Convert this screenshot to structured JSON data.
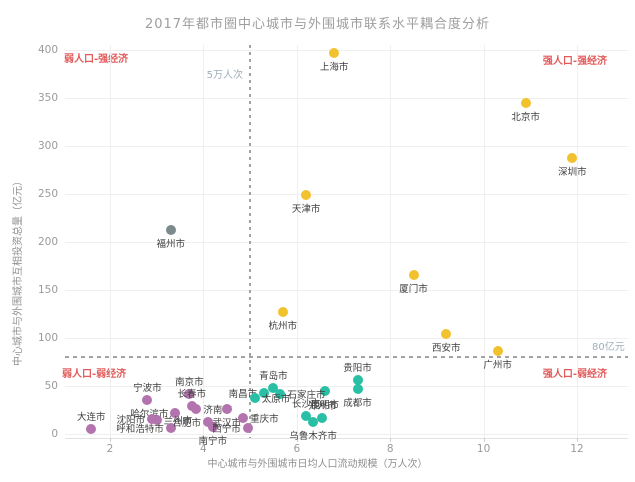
{
  "chart_data": {
    "type": "scatter",
    "title": "2017年都市圈中心城市与外围城市联系水平耦合度分析",
    "xlabel": "中心城市与外围城市日均人口流动规模（万人次）",
    "ylabel": "中心城市与外围城市互相投资总量（亿元）",
    "x_ticks": [
      2,
      4,
      6,
      8,
      10,
      12
    ],
    "y_ticks": [
      0,
      50,
      100,
      150,
      200,
      250,
      300,
      350,
      400
    ],
    "xlim": [
      1.0,
      13.1
    ],
    "ylim": [
      0,
      410
    ],
    "grid": true,
    "legend": "none",
    "quadrants": {
      "top_left": "弱人口-强经济",
      "top_right": "强人口-强经济",
      "bottom_left": "弱人口-弱经济",
      "bottom_right": "强人口-弱经济"
    },
    "reference_lines": {
      "vertical": {
        "value": 5,
        "label": "5万人次"
      },
      "horizontal": {
        "value": 80,
        "label": "80亿元"
      }
    },
    "series": [
      {
        "name": "yellow-group",
        "color": "#F2C12E",
        "points": [
          {
            "city": "上海市",
            "x": 6.8,
            "y": 397,
            "label_pos": "below"
          },
          {
            "city": "北京市",
            "x": 10.9,
            "y": 345,
            "label_pos": "below"
          },
          {
            "city": "深圳市",
            "x": 11.9,
            "y": 287,
            "label_pos": "below"
          },
          {
            "city": "天津市",
            "x": 6.2,
            "y": 249,
            "label_pos": "below"
          },
          {
            "city": "厦门市",
            "x": 8.5,
            "y": 166,
            "label_pos": "below"
          },
          {
            "city": "杭州市",
            "x": 5.7,
            "y": 127,
            "label_pos": "below"
          },
          {
            "city": "西安市",
            "x": 9.2,
            "y": 104,
            "label_pos": "below"
          },
          {
            "city": "广州市",
            "x": 10.3,
            "y": 86,
            "label_pos": "below"
          }
        ]
      },
      {
        "name": "gray-group",
        "color": "#7C8A8D",
        "points": [
          {
            "city": "福州市",
            "x": 3.3,
            "y": 212,
            "label_pos": "below"
          }
        ]
      },
      {
        "name": "teal-group",
        "color": "#29BFA4",
        "points": [
          {
            "city": "贵阳市",
            "x": 7.3,
            "y": 56,
            "label_pos": "above"
          },
          {
            "city": "成都市",
            "x": 7.3,
            "y": 47,
            "label_pos": "below"
          },
          {
            "city": "昆明市",
            "x": 6.6,
            "y": 45,
            "label_pos": "below"
          },
          {
            "city": "青岛市",
            "x": 5.5,
            "y": 48,
            "label_pos": "above"
          },
          {
            "city": "南昌市",
            "x": 5.3,
            "y": 43,
            "label_pos": "left"
          },
          {
            "city": "石家庄市",
            "x": 5.65,
            "y": 42,
            "label_pos": "right"
          },
          {
            "city": "太原市",
            "x": 5.1,
            "y": 37,
            "label_pos": "right"
          },
          {
            "city": "长沙市",
            "x": 6.2,
            "y": 19,
            "label_pos": "above"
          },
          {
            "city": "郑州市",
            "x": 6.55,
            "y": 17,
            "label_pos": "above"
          },
          {
            "city": "乌鲁木齐市",
            "x": 6.35,
            "y": 12,
            "label_pos": "below"
          }
        ]
      },
      {
        "name": "purple-group",
        "color": "#B273AE",
        "points": [
          {
            "city": "大连市",
            "x": 1.6,
            "y": 5,
            "label_pos": "above"
          },
          {
            "city": "宁波市",
            "x": 2.8,
            "y": 35,
            "label_pos": "above"
          },
          {
            "city": "南京市",
            "x": 3.7,
            "y": 42,
            "label_pos": "above"
          },
          {
            "city": "长春市",
            "x": 3.75,
            "y": 29,
            "label_pos": "above"
          },
          {
            "city": "济南市",
            "x": 3.85,
            "y": 26,
            "label_pos": "right"
          },
          {
            "city": "哈尔滨市",
            "x": 3.4,
            "y": 22,
            "label_pos": "left"
          },
          {
            "city": "沈阳市",
            "x": 2.9,
            "y": 16,
            "label_pos": "left"
          },
          {
            "city": "兰州市",
            "x": 3.0,
            "y": 15,
            "label_pos": "right"
          },
          {
            "city": "呼和浩特市",
            "x": 3.3,
            "y": 6,
            "label_pos": "left"
          },
          {
            "city": "合肥市",
            "x": 4.1,
            "y": 13,
            "label_pos": "left"
          },
          {
            "city": "南宁市",
            "x": 4.2,
            "y": 7,
            "label_pos": "below"
          },
          {
            "city": "武汉市",
            "x": 4.5,
            "y": 26,
            "label_pos": "below"
          },
          {
            "city": "重庆市",
            "x": 4.85,
            "y": 17,
            "label_pos": "right"
          },
          {
            "city": "西宁市",
            "x": 4.95,
            "y": 6,
            "label_pos": "left"
          }
        ]
      }
    ]
  },
  "colors": {
    "quadrant_label": "#E25B5B",
    "title_text": "#9E9E9E",
    "axis_text": "#8F8F8F",
    "tick_text": "#9A9A9A",
    "gridline": "#EFEFEF",
    "reference_line": "#A3A3A3",
    "reference_label": "#9FB0BA",
    "background": "#FFFFFF"
  }
}
